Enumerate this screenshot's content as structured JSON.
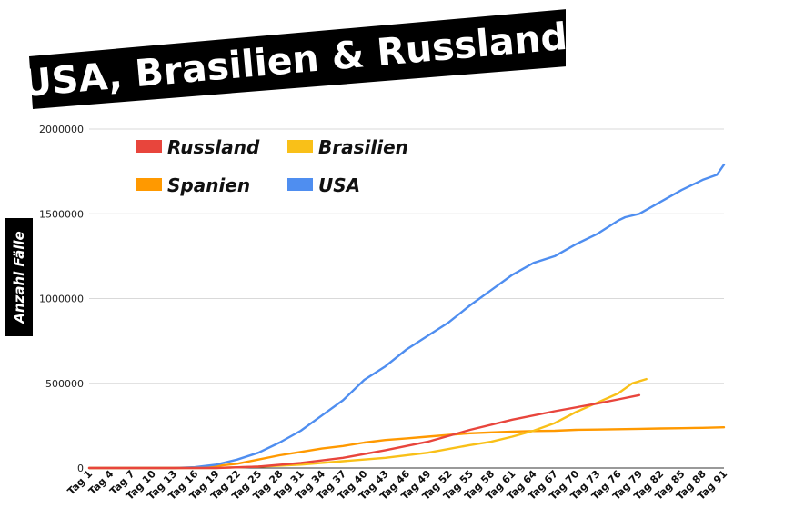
{
  "title": "USA, Brasilien & Russland",
  "colors": {
    "russland": "#e8453c",
    "brasilien": "#f9c018",
    "spanien": "#ff9900",
    "usa": "#4f8ef0",
    "banner": "#000000"
  },
  "chart_data": {
    "type": "line",
    "title": "USA, Brasilien & Russland",
    "xlabel": "",
    "ylabel": "Anzahl Fälle",
    "ylim": [
      0,
      2000000
    ],
    "y_ticks": [
      "0",
      "500000",
      "1000000",
      "1500000",
      "2000000"
    ],
    "x_ticks": [
      "Tag 1",
      "Tag 4",
      "Tag 7",
      "Tag 10",
      "Tag 13",
      "Tag 16",
      "Tag 19",
      "Tag 22",
      "Tag 25",
      "Tag 28",
      "Tag 31",
      "Tag 34",
      "Tag 37",
      "Tag 40",
      "Tag 43",
      "Tag 46",
      "Tag 49",
      "Tag 52",
      "Tag 55",
      "Tag 58",
      "Tag 61",
      "Tag 64",
      "Tag 67",
      "Tag 70",
      "Tag 73",
      "Tag 76",
      "Tag 79",
      "Tag 82",
      "Tag 85",
      "Tag 88",
      "Tag 91"
    ],
    "grid": true,
    "legend_position": "top-left",
    "series": [
      {
        "name": "Russland",
        "color": "#e8453c",
        "x": [
          1,
          10,
          19,
          25,
          31,
          37,
          43,
          49,
          55,
          61,
          67,
          73,
          76,
          79
        ],
        "values": [
          0,
          0,
          100,
          8000,
          30000,
          60000,
          105000,
          155000,
          225000,
          285000,
          335000,
          380000,
          405000,
          430000
        ]
      },
      {
        "name": "Brasilien",
        "color": "#f9c018",
        "x": [
          1,
          10,
          19,
          25,
          31,
          37,
          43,
          49,
          55,
          58,
          61,
          64,
          67,
          70,
          73,
          76,
          78,
          80
        ],
        "values": [
          0,
          0,
          500,
          8000,
          20000,
          40000,
          60000,
          90000,
          135000,
          155000,
          185000,
          220000,
          265000,
          330000,
          385000,
          440000,
          500000,
          525000
        ]
      },
      {
        "name": "Spanien",
        "color": "#ff9900",
        "x": [
          1,
          13,
          16,
          19,
          22,
          25,
          28,
          31,
          34,
          37,
          40,
          43,
          46,
          49,
          52,
          55,
          58,
          61,
          64,
          67,
          70,
          73,
          76,
          79,
          82,
          85,
          88,
          91
        ],
        "values": [
          0,
          0,
          2000,
          12000,
          25000,
          50000,
          75000,
          95000,
          115000,
          130000,
          150000,
          165000,
          175000,
          185000,
          195000,
          205000,
          210000,
          215000,
          218000,
          220000,
          225000,
          227000,
          229000,
          231000,
          233000,
          235000,
          237000,
          240000
        ]
      },
      {
        "name": "USA",
        "color": "#4f8ef0",
        "x": [
          1,
          13,
          16,
          19,
          22,
          25,
          28,
          31,
          34,
          37,
          40,
          43,
          46,
          49,
          52,
          55,
          58,
          61,
          64,
          67,
          70,
          73,
          76,
          77,
          79,
          82,
          85,
          88,
          90,
          91
        ],
        "values": [
          0,
          0,
          5000,
          20000,
          50000,
          90000,
          150000,
          220000,
          310000,
          400000,
          520000,
          600000,
          700000,
          780000,
          860000,
          960000,
          1050000,
          1140000,
          1210000,
          1250000,
          1320000,
          1380000,
          1460000,
          1480000,
          1500000,
          1570000,
          1640000,
          1700000,
          1730000,
          1790000
        ]
      }
    ]
  }
}
